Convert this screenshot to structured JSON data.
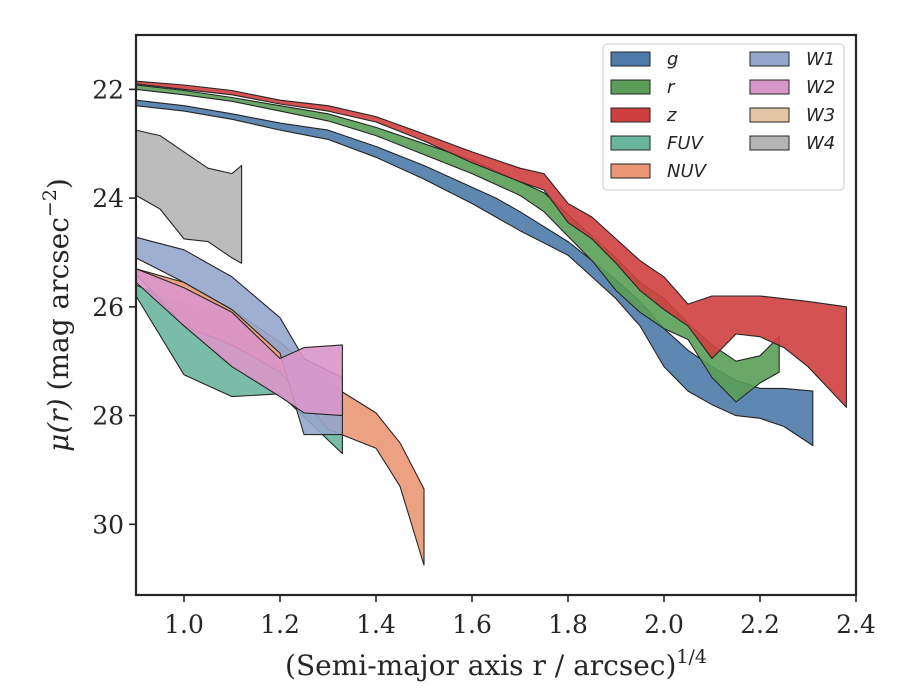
{
  "chart_data": {
    "type": "area",
    "title": "",
    "xlabel": "(Semi-major axis r / arcsec)",
    "xlabel_exponent": "1/4",
    "ylabel_mu": "μ(r)",
    "ylabel_units": "(mag arcsec",
    "ylabel_exponent": "−2",
    "ylabel_close": ")",
    "xlim": [
      0.9,
      2.4
    ],
    "ylim": [
      31.3,
      21.0
    ],
    "y_inverted": true,
    "grid": false,
    "legend_placement": "top-right",
    "legend_columns": 2,
    "xticks": [
      1.0,
      1.2,
      1.4,
      1.6,
      1.8,
      2.0,
      2.2,
      2.4
    ],
    "xtick_labels": [
      "1.0",
      "1.2",
      "1.4",
      "1.6",
      "1.8",
      "2.0",
      "2.2",
      "2.4"
    ],
    "yticks": [
      22,
      24,
      26,
      28,
      30
    ],
    "ytick_labels": [
      "22",
      "24",
      "26",
      "28",
      "30"
    ],
    "series": [
      {
        "name": "g",
        "color": "#4c7ba9",
        "x": [
          0.9,
          1.0,
          1.1,
          1.2,
          1.3,
          1.4,
          1.5,
          1.6,
          1.65,
          1.7,
          1.8,
          1.85,
          1.9,
          1.95,
          2.0,
          2.05,
          2.1,
          2.15,
          2.2,
          2.25,
          2.31
        ],
        "lower": [
          22.2,
          22.3,
          22.45,
          22.62,
          22.75,
          23.05,
          23.4,
          23.8,
          24.0,
          24.25,
          24.8,
          25.15,
          25.5,
          25.9,
          26.4,
          26.8,
          27.1,
          27.35,
          27.5,
          27.5,
          27.55
        ],
        "upper": [
          22.3,
          22.4,
          22.55,
          22.75,
          22.92,
          23.25,
          23.65,
          24.1,
          24.35,
          24.6,
          25.05,
          25.45,
          25.85,
          26.35,
          27.1,
          27.55,
          27.8,
          28.0,
          28.05,
          28.2,
          28.55
        ]
      },
      {
        "name": "r",
        "color": "#5a9e57",
        "x": [
          0.9,
          1.0,
          1.1,
          1.2,
          1.3,
          1.4,
          1.5,
          1.6,
          1.7,
          1.75,
          1.8,
          1.85,
          1.9,
          1.95,
          2.0,
          2.05,
          2.1,
          2.15,
          2.2,
          2.24
        ],
        "lower": [
          21.92,
          22.02,
          22.15,
          22.3,
          22.45,
          22.7,
          23.0,
          23.3,
          23.7,
          23.9,
          24.3,
          24.7,
          25.1,
          25.55,
          25.85,
          26.3,
          26.7,
          27.0,
          26.9,
          26.55
        ],
        "upper": [
          22.0,
          22.1,
          22.22,
          22.4,
          22.58,
          22.85,
          23.2,
          23.55,
          23.95,
          24.25,
          24.7,
          25.15,
          25.7,
          26.1,
          26.4,
          26.6,
          27.3,
          27.75,
          27.4,
          27.2
        ]
      },
      {
        "name": "z",
        "color": "#cf3f3e",
        "x": [
          0.9,
          1.0,
          1.1,
          1.2,
          1.3,
          1.4,
          1.5,
          1.6,
          1.7,
          1.75,
          1.8,
          1.85,
          1.9,
          1.95,
          2.0,
          2.05,
          2.1,
          2.15,
          2.2,
          2.25,
          2.3,
          2.38
        ],
        "lower": [
          21.85,
          21.92,
          22.02,
          22.2,
          22.3,
          22.5,
          22.82,
          23.15,
          23.45,
          23.55,
          24.1,
          24.35,
          24.75,
          25.15,
          25.45,
          25.95,
          25.8,
          25.8,
          25.8,
          25.85,
          25.9,
          26.0
        ],
        "upper": [
          21.9,
          22.0,
          22.1,
          22.27,
          22.4,
          22.6,
          22.95,
          23.35,
          23.7,
          23.85,
          24.45,
          24.75,
          25.2,
          25.7,
          26.05,
          26.35,
          26.95,
          26.5,
          26.55,
          26.75,
          27.1,
          27.85
        ]
      },
      {
        "name": "FUV",
        "color": "#6ab59d",
        "x": [
          0.9,
          1.0,
          1.1,
          1.2,
          1.3,
          1.33
        ],
        "lower": [
          25.6,
          25.95,
          26.1,
          27.1,
          28.0,
          28.1
        ],
        "upper": [
          25.8,
          27.25,
          27.65,
          27.6,
          28.45,
          28.7
        ]
      },
      {
        "name": "NUV",
        "color": "#eb9776",
        "x": [
          0.9,
          1.0,
          1.1,
          1.2,
          1.3,
          1.4,
          1.45,
          1.5
        ],
        "lower": [
          25.3,
          25.55,
          26.05,
          26.65,
          27.4,
          27.95,
          28.5,
          29.35
        ],
        "upper": [
          25.4,
          26.35,
          26.7,
          27.2,
          28.25,
          28.6,
          29.3,
          30.75
        ]
      },
      {
        "name": "W1",
        "color": "#95a6cc",
        "x": [
          0.9,
          1.0,
          1.1,
          1.2,
          1.25,
          1.33
        ],
        "lower": [
          24.72,
          24.95,
          25.45,
          26.2,
          26.95,
          27.3
        ],
        "upper": [
          25.1,
          25.55,
          26.05,
          26.85,
          28.35,
          28.35
        ]
      },
      {
        "name": "W2",
        "color": "#d996c9",
        "x": [
          0.9,
          1.0,
          1.1,
          1.2,
          1.25,
          1.33
        ],
        "lower": [
          25.3,
          25.65,
          26.1,
          26.95,
          26.75,
          26.7
        ],
        "upper": [
          25.55,
          26.35,
          27.1,
          27.65,
          27.95,
          28.0
        ]
      },
      {
        "name": "W3",
        "color": "#e2c6a3",
        "x": [],
        "lower": [],
        "upper": []
      },
      {
        "name": "W4",
        "color": "#b5b5b5",
        "x": [
          0.9,
          0.95,
          1.0,
          1.05,
          1.1,
          1.12
        ],
        "lower": [
          22.75,
          22.85,
          23.15,
          23.45,
          23.55,
          23.4
        ],
        "upper": [
          23.95,
          24.2,
          24.75,
          24.8,
          25.1,
          25.2
        ]
      }
    ]
  }
}
